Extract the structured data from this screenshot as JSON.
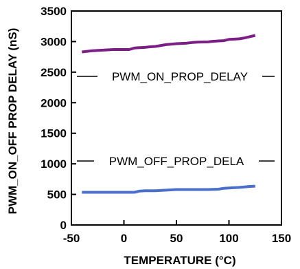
{
  "chart_data": {
    "type": "line",
    "xlabel": "TEMPERATURE (°C)",
    "ylabel": "PWM_ON_OFF PROP DELAY (nS)",
    "xlim": [
      -50,
      150
    ],
    "ylim": [
      0,
      3500
    ],
    "x_ticks": [
      -50,
      0,
      50,
      100,
      150
    ],
    "y_ticks": [
      0,
      500,
      1000,
      1500,
      2000,
      2500,
      3000,
      3500
    ],
    "grid": false,
    "series": [
      {
        "name": "PWM_ON_PROP_DELAY",
        "color": "#7b1f86",
        "x": [
          -40,
          -30,
          -20,
          -10,
          0,
          5,
          10,
          15,
          20,
          25,
          30,
          40,
          50,
          55,
          60,
          65,
          70,
          80,
          85,
          90,
          95,
          100,
          105,
          110,
          115,
          120,
          125
        ],
        "y": [
          2830,
          2850,
          2860,
          2870,
          2870,
          2870,
          2895,
          2900,
          2905,
          2915,
          2920,
          2950,
          2965,
          2970,
          2975,
          2985,
          2990,
          2995,
          3005,
          3010,
          3015,
          3035,
          3040,
          3045,
          3060,
          3080,
          3100
        ]
      },
      {
        "name": "PWM_OFF_PROP_DELA",
        "color": "#4a6fcc",
        "x": [
          -40,
          -20,
          0,
          10,
          15,
          20,
          25,
          30,
          40,
          50,
          55,
          60,
          70,
          80,
          90,
          95,
          100,
          110,
          120,
          125
        ],
        "y": [
          535,
          535,
          535,
          535,
          555,
          560,
          560,
          560,
          570,
          580,
          580,
          580,
          580,
          580,
          585,
          600,
          605,
          615,
          630,
          635
        ]
      }
    ]
  }
}
